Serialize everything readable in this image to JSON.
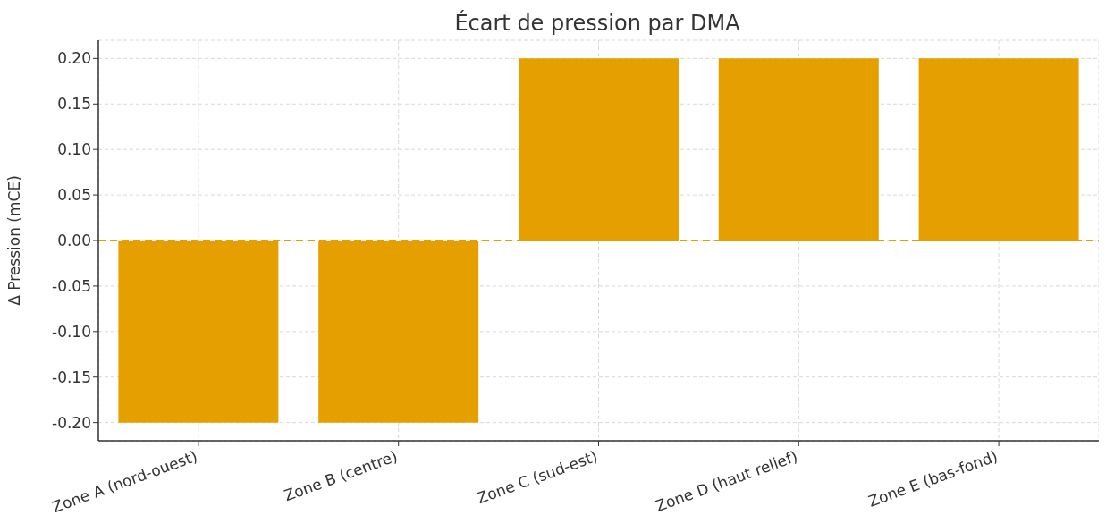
{
  "chart_data": {
    "type": "bar",
    "title": "Écart de pression par DMA",
    "ylabel": "Δ Pression (mCE)",
    "categories": [
      "Zone A (nord-ouest)",
      "Zone B (centre)",
      "Zone C (sud-est)",
      "Zone D (haut relief)",
      "Zone E (bas-fond)"
    ],
    "values": [
      -0.2,
      -0.2,
      0.2,
      0.2,
      0.2
    ],
    "color": "#e5a000",
    "ylim": [
      -0.22,
      0.22
    ],
    "yticks": [
      {
        "value": -0.2,
        "label": "-0.20"
      },
      {
        "value": -0.15,
        "label": "-0.15"
      },
      {
        "value": -0.1,
        "label": "-0.10"
      },
      {
        "value": -0.05,
        "label": "-0.05"
      },
      {
        "value": 0,
        "label": "0.00"
      },
      {
        "value": 0.05,
        "label": "0.05"
      },
      {
        "value": 0.1,
        "label": "0.10"
      },
      {
        "value": 0.15,
        "label": "0.15"
      },
      {
        "value": 0.2,
        "label": "0.20"
      }
    ],
    "ref_lines": [
      {
        "axis": "y",
        "value": 0,
        "color": "#e5a000",
        "line_style": "dashed"
      }
    ],
    "grid": true
  }
}
